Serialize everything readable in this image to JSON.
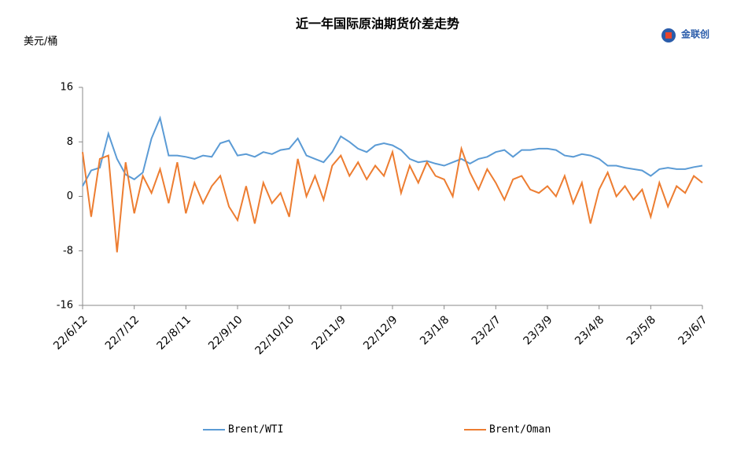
{
  "chart_data": {
    "type": "line",
    "title": "近一年国际原油期货价差走势",
    "y_label": "美元/桶",
    "logo": "金联创",
    "categories": [
      "22/6/12",
      null,
      null,
      null,
      null,
      null,
      "22/7/12",
      null,
      null,
      null,
      null,
      null,
      "22/8/11",
      null,
      null,
      null,
      null,
      null,
      "22/9/10",
      null,
      null,
      null,
      null,
      null,
      "22/10/10",
      null,
      null,
      null,
      null,
      null,
      "22/11/9",
      null,
      null,
      null,
      null,
      null,
      "22/12/9",
      null,
      null,
      null,
      null,
      null,
      "23/1/8",
      null,
      null,
      null,
      null,
      null,
      "23/2/7",
      null,
      null,
      null,
      null,
      null,
      "23/3/9",
      null,
      null,
      null,
      null,
      null,
      "23/4/8",
      null,
      null,
      null,
      null,
      null,
      "23/5/8",
      null,
      null,
      null,
      null,
      null,
      "23/6/7"
    ],
    "series": [
      {
        "name": "Brent/WTI",
        "color": "#5b9bd5",
        "values": [
          1.5,
          3.8,
          4.2,
          9.2,
          5.5,
          3.2,
          2.5,
          3.5,
          8.5,
          11.5,
          6,
          6,
          5.8,
          5.5,
          6,
          5.8,
          7.8,
          8.2,
          6,
          6.2,
          5.8,
          6.5,
          6.2,
          6.8,
          7,
          8.5,
          6,
          5.5,
          5,
          6.5,
          8.8,
          8,
          7,
          6.5,
          7.5,
          7.8,
          7.5,
          6.8,
          5.5,
          5,
          5.2,
          4.8,
          4.5,
          5,
          5.5,
          4.8,
          5.5,
          5.8,
          6.5,
          6.8,
          5.8,
          6.8,
          6.8,
          7,
          7,
          6.8,
          6,
          5.8,
          6.2,
          6,
          5.5,
          4.5,
          4.5,
          4.2,
          4,
          3.8,
          3,
          4,
          4.2,
          4,
          4,
          4.3,
          4.5
        ]
      },
      {
        "name": "Brent/Oman",
        "color": "#ed7d31",
        "values": [
          6.5,
          -3,
          5.5,
          6,
          -8.2,
          5,
          -2.5,
          3,
          0.5,
          4,
          -1,
          5,
          -2.5,
          2,
          -1,
          1.5,
          3,
          -1.5,
          -3.5,
          1.5,
          -4,
          2,
          -1,
          0.5,
          -3,
          5.5,
          0,
          3,
          -0.5,
          4.5,
          6,
          3,
          5,
          2.5,
          4.5,
          3,
          6.5,
          0.5,
          4.5,
          2,
          5,
          3,
          2.5,
          0,
          7,
          3.5,
          1,
          4,
          2,
          -0.5,
          2.5,
          3,
          1,
          0.5,
          1.5,
          0,
          3,
          -1,
          2,
          -4,
          1,
          3.5,
          0,
          1.5,
          -0.5,
          1,
          -3,
          2,
          -1.5,
          1.5,
          0.5,
          3,
          2
        ]
      }
    ],
    "ylim": [
      -16,
      16
    ],
    "yticks": [
      16,
      8,
      0,
      -8,
      -16
    ],
    "legend": "bottom"
  }
}
